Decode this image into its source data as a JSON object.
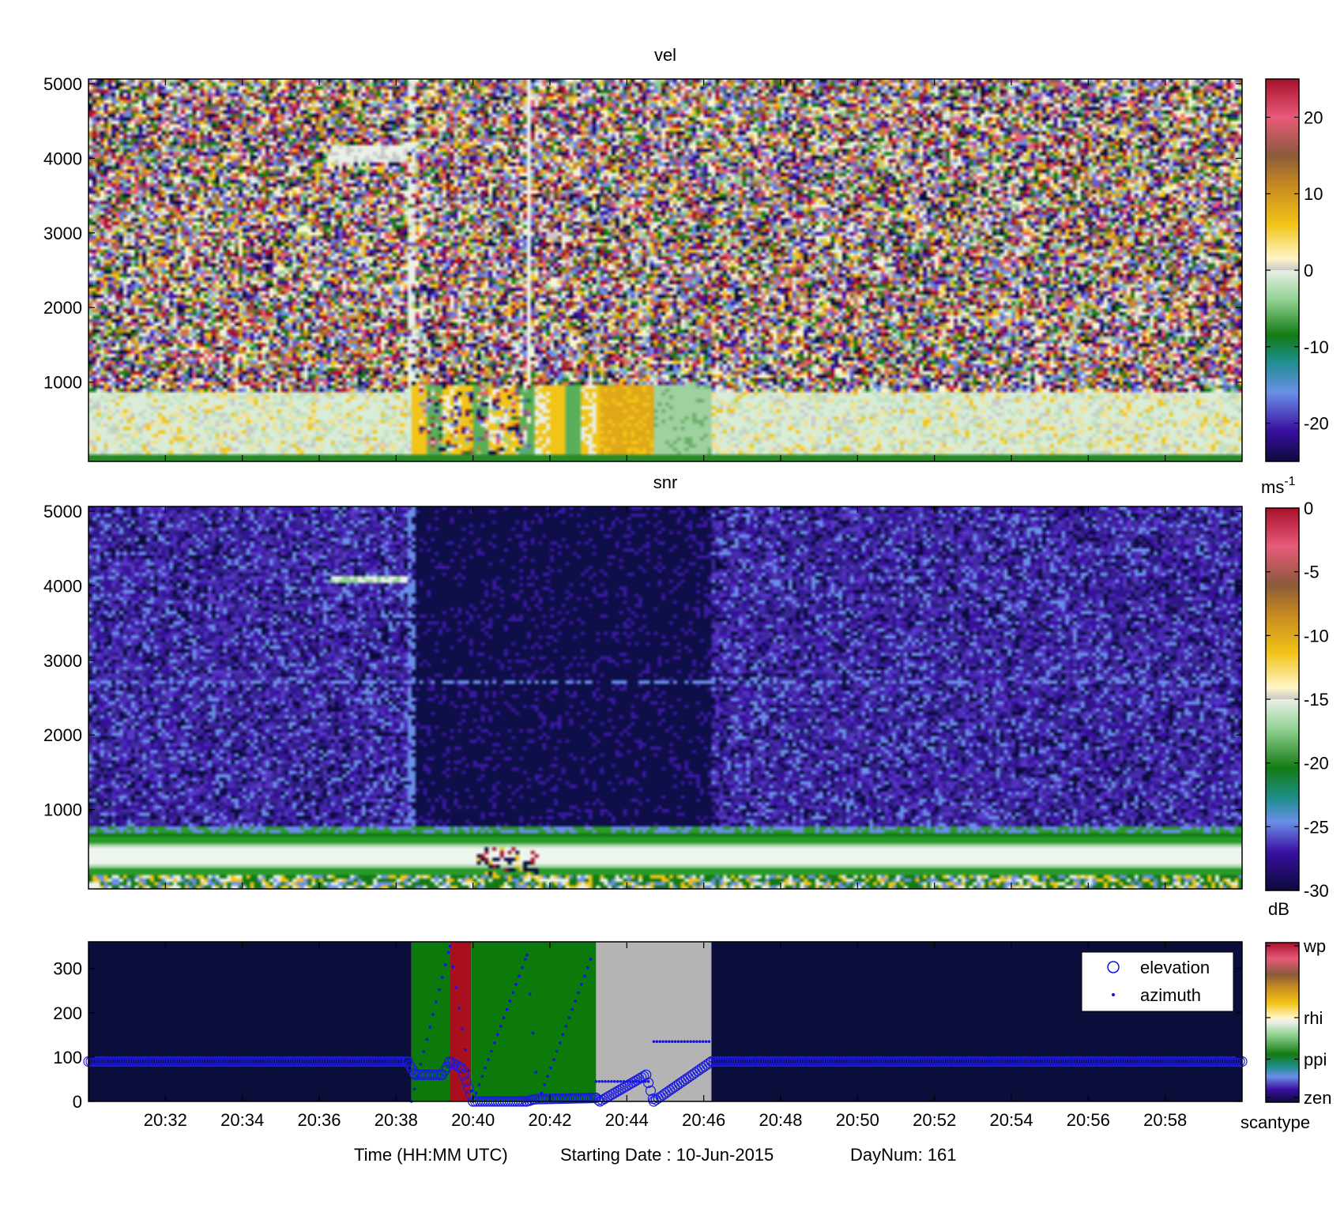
{
  "footer": {
    "time_label": "Time (HH:MM UTC)",
    "date_label": "Starting Date : 10-Jun-2015",
    "daynum_label": "DayNum: 161"
  },
  "x_ticks": [
    "20:32",
    "20:34",
    "20:36",
    "20:38",
    "20:40",
    "20:42",
    "20:44",
    "20:46",
    "20:48",
    "20:50",
    "20:52",
    "20:54",
    "20:56",
    "20:58"
  ],
  "chart_data": [
    {
      "type": "heatmap",
      "title": "vel",
      "x_range": [
        "20:30",
        "21:00"
      ],
      "y_range": [
        0,
        5000
      ],
      "yticks": [
        "1000",
        "2000",
        "3000",
        "4000",
        "5000"
      ],
      "colorbar": {
        "ticks": [
          "-20",
          "-10",
          "0",
          "10",
          "20"
        ],
        "range": [
          -25,
          25
        ],
        "unit": "ms",
        "unit_exp": "-1"
      },
      "description_values": [
        {
          "period": "20:30-20:38",
          "below_900m": "0 to 3",
          "above_900m": "noise"
        },
        {
          "period": "20:38.5-20:43",
          "below_1000m": "6 (yellow) / -8 (green) bands",
          "above_1000m": "noise"
        },
        {
          "period": "20:43.5-20:44.5",
          "below_1000m": "5"
        },
        {
          "period": "20:44.5-20:46",
          "below_1000m": "-5"
        },
        {
          "period": "20:46-21:00",
          "below_900m": "-2 to 2",
          "above_900m": "noise"
        }
      ]
    },
    {
      "type": "heatmap",
      "title": "snr",
      "x_range": [
        "20:30",
        "21:00"
      ],
      "y_range": [
        0,
        5000
      ],
      "yticks": [
        "1000",
        "2000",
        "3000",
        "4000",
        "5000"
      ],
      "colorbar": {
        "ticks": [
          "0",
          "-5",
          "-10",
          "-15",
          "-20",
          "-25",
          "-30"
        ],
        "range": [
          -30,
          0
        ],
        "unit": "dB"
      },
      "layers": [
        {
          "height_m": [
            0,
            150
          ],
          "snr_db": -18
        },
        {
          "height_m": [
            150,
            700
          ],
          "snr_db": -16
        },
        {
          "height_m": [
            700,
            5000
          ],
          "snr_db": -28
        }
      ]
    },
    {
      "type": "scatter",
      "xlim": [
        "20:30",
        "21:00"
      ],
      "ylim": [
        0,
        360
      ],
      "yticks": [
        "0",
        "100",
        "200",
        "300"
      ],
      "legend": {
        "placement": "top-right",
        "entries": [
          "elevation",
          "azimuth"
        ]
      },
      "colorbar": {
        "ticks": [
          "wp",
          "rhi",
          "ppi",
          "zen"
        ],
        "label": "scantype"
      },
      "scantype_segments": [
        {
          "start": "20:30",
          "end": "20:38.4",
          "type": "zen"
        },
        {
          "start": "20:38.4",
          "end": "20:39.4",
          "type": "ppi"
        },
        {
          "start": "20:39.4",
          "end": "20:39.95",
          "type": "wp"
        },
        {
          "start": "20:39.95",
          "end": "20:43.2",
          "type": "ppi"
        },
        {
          "start": "20:43.2",
          "end": "20:46.2",
          "type": "rhi"
        },
        {
          "start": "20:46.2",
          "end": "21:00",
          "type": "zen"
        }
      ],
      "series": [
        {
          "name": "elevation",
          "points": [
            {
              "t": "20:30",
              "v": 90
            },
            {
              "t": "20:38.3",
              "v": 90
            },
            {
              "t": "20:38.5",
              "v": 60
            },
            {
              "t": "20:39.2",
              "v": 60
            },
            {
              "t": "20:39.4",
              "v": 90
            },
            {
              "t": "20:39.7",
              "v": 75
            },
            {
              "t": "20:40",
              "v": 0
            },
            {
              "t": "20:41.4",
              "v": 0
            },
            {
              "t": "20:41.6",
              "v": 5
            },
            {
              "t": "20:43.2",
              "v": 8
            },
            {
              "t": "20:43.3",
              "v": 0
            },
            {
              "t": "20:44.5",
              "v": 60
            },
            {
              "t": "20:44.7",
              "v": 0
            },
            {
              "t": "20:46.2",
              "v": 90
            },
            {
              "t": "21:00",
              "v": 90
            }
          ]
        },
        {
          "name": "azimuth",
          "points": [
            {
              "t": "20:38.4",
              "v": 0
            },
            {
              "t": "20:39.4",
              "v": 350
            },
            {
              "t": "20:40",
              "v": 0
            },
            {
              "t": "20:41.4",
              "v": 330
            },
            {
              "t": "20:41.7",
              "v": 0
            },
            {
              "t": "20:43.1",
              "v": 330
            },
            {
              "t": "20:43.2",
              "v": 45
            },
            {
              "t": "20:44.6",
              "v": 45
            },
            {
              "t": "20:44.7",
              "v": 135
            },
            {
              "t": "20:46.2",
              "v": 135
            }
          ]
        }
      ]
    }
  ]
}
